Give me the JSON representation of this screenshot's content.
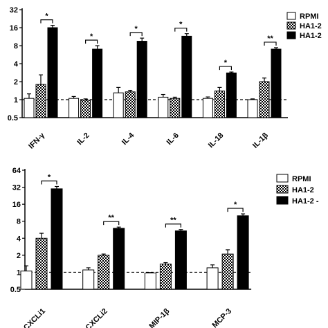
{
  "chart_data": [
    {
      "type": "bar",
      "y_scale": "log2",
      "ylim": [
        0.5,
        32
      ],
      "yticks": [
        0.5,
        1,
        2,
        4,
        8,
        16,
        32
      ],
      "ytick_labels": [
        "0.5",
        "1",
        "2",
        "4",
        "8",
        "16",
        "32"
      ],
      "reference_line": 1,
      "categories": [
        "IFN-γ",
        "IL-2",
        "IL-4",
        "IL-6",
        "IL-18",
        "IL-1β"
      ],
      "series": [
        {
          "name": "RPMI",
          "pattern": "white",
          "values": [
            1.05,
            1.05,
            1.3,
            1.1,
            1.05,
            1.0
          ],
          "errors": [
            0.2,
            0.08,
            0.3,
            0.12,
            0.06,
            0.03
          ]
        },
        {
          "name": "HA1-2",
          "pattern": "checker",
          "values": [
            1.8,
            0.98,
            1.35,
            1.05,
            1.4,
            2.0
          ],
          "errors": [
            0.8,
            0.05,
            0.08,
            0.05,
            0.2,
            0.3
          ]
        },
        {
          "name": "HA1-2",
          "pattern": "black",
          "values": [
            16,
            7,
            9.5,
            11.5,
            2.8,
            7.0
          ],
          "errors": [
            1.5,
            1.0,
            1.2,
            1.2,
            0.1,
            0.4
          ]
        }
      ],
      "significance": [
        "*",
        "*",
        "*",
        "*",
        "*",
        "**"
      ],
      "legend": [
        "RPMI",
        "HA1-2",
        "HA1-2"
      ],
      "legend_position": "top-right"
    },
    {
      "type": "bar",
      "y_scale": "log2",
      "ylim": [
        0.5,
        64
      ],
      "yticks": [
        0.5,
        1,
        2,
        4,
        8,
        16,
        32,
        64
      ],
      "ytick_labels": [
        "0.5",
        "1",
        "2",
        "4",
        "8",
        "16",
        "32",
        "64"
      ],
      "reference_line": 1,
      "categories": [
        "CXCLi1",
        "CXCLi2",
        "MIP-1β",
        "MCP-3"
      ],
      "series": [
        {
          "name": "RPMI",
          "pattern": "white",
          "values": [
            1.05,
            1.1,
            0.97,
            1.2
          ],
          "errors": [
            0.25,
            0.1,
            0.02,
            0.15
          ]
        },
        {
          "name": "HA1-2",
          "pattern": "checker",
          "values": [
            4.0,
            2.0,
            1.4,
            2.1
          ],
          "errors": [
            0.9,
            0.1,
            0.08,
            0.4
          ]
        },
        {
          "name": "HA1-2 -",
          "pattern": "black",
          "values": [
            30,
            6.0,
            5.4,
            10
          ],
          "errors": [
            3,
            0.3,
            0.3,
            0.8
          ]
        }
      ],
      "significance": [
        "*",
        "**",
        "**",
        "*"
      ],
      "legend": [
        "RPMI",
        "HA1-2",
        "HA1-2 -"
      ],
      "legend_position": "top-right"
    }
  ]
}
